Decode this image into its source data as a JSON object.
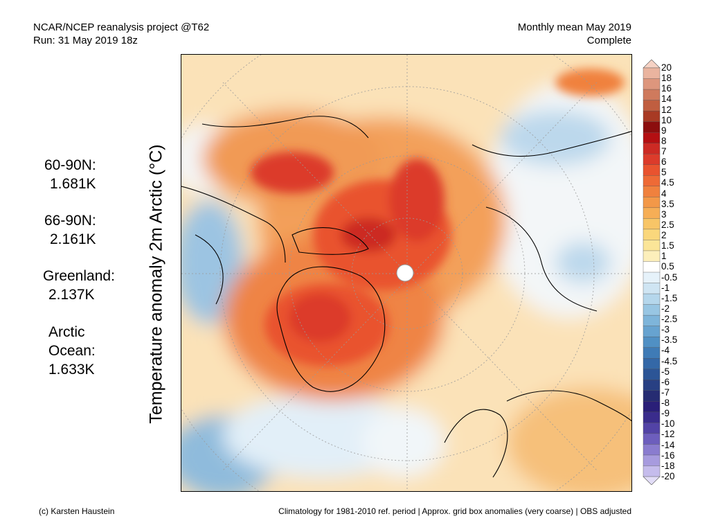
{
  "header": {
    "line1_left": "NCAR/NCEP reanalysis project @T62",
    "line2_left": "Run: 31 May 2019 18z",
    "line1_right": "Monthly mean May 2019",
    "line2_right": "Complete"
  },
  "stats": {
    "n60_90": {
      "label": "60-90N:",
      "value": "1.681K"
    },
    "n66_90": {
      "label": "66-90N:",
      "value": "2.161K"
    },
    "greenland": {
      "label": "Greenland:",
      "value": "2.137K"
    },
    "arctic_ocean": {
      "label_line1": "Arctic",
      "label_line2": "Ocean:",
      "value": "1.633K"
    }
  },
  "y_axis_title": "Temperature anomaly 2m Arctic (°C)",
  "colorbar": {
    "labels": [
      "20",
      "18",
      "16",
      "14",
      "12",
      "10",
      "9",
      "8",
      "7",
      "6",
      "5",
      "4.5",
      "4",
      "3.5",
      "3",
      "2.5",
      "2",
      "1.5",
      "1",
      "0.5",
      "-0.5",
      "-1",
      "-1.5",
      "-2",
      "-2.5",
      "-3",
      "-3.5",
      "-4",
      "-4.5",
      "-5",
      "-6",
      "-7",
      "-8",
      "-9",
      "-10",
      "-12",
      "-14",
      "-16",
      "-18",
      "-20"
    ],
    "colors": [
      "#f6d2c4",
      "#eab49f",
      "#dd967d",
      "#cf7a5d",
      "#c05e40",
      "#a83a24",
      "#8c0e0e",
      "#b40f12",
      "#cc2a24",
      "#dc3b2b",
      "#e9532f",
      "#ee6a36",
      "#f0813e",
      "#f39848",
      "#f6ae56",
      "#f8c567",
      "#fad77c",
      "#fbe598",
      "#fcefbb",
      "#ffffff",
      "#e6f2fa",
      "#cfe5f3",
      "#b5d7ec",
      "#98c6e3",
      "#7eb5da",
      "#67a3d0",
      "#5090c4",
      "#3f7bb6",
      "#3468a7",
      "#2c5596",
      "#284083",
      "#262c72",
      "#2a1f78",
      "#3a2c8c",
      "#5243a6",
      "#6d5ebd",
      "#8a7ccf",
      "#a79bde",
      "#c5bcec",
      "#e2ddf7"
    ]
  },
  "footer": {
    "left": "(c) Karsten Haustein",
    "right": "Climatology for 1981-2010 ref. period | Approx. grid box anomalies (very coarse) | OBS adjusted"
  }
}
